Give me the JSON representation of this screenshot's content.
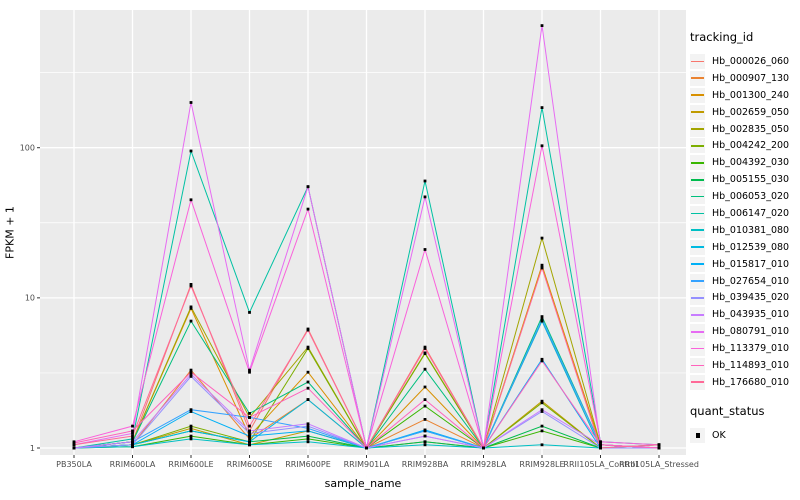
{
  "figure": {
    "background": "#FFFFFF",
    "panel_background": "#EBEBEB",
    "grid_color": "#FFFFFF",
    "axis_text_color": "#4D4D4D",
    "tick_mark_color": "#333333",
    "point_color": "#000000"
  },
  "chart_data": {
    "type": "line",
    "title": "",
    "xlabel": "sample_name",
    "ylabel": "FPKM + 1",
    "y_scale": "log10",
    "y_ticks": [
      1,
      10,
      100
    ],
    "y_minor_ticks": [
      3.1623,
      31.623,
      316.23
    ],
    "ylim": [
      0.9,
      830
    ],
    "grid": "major-and-minor",
    "legend_position": "right",
    "legend_title": "tracking_id",
    "point_marker": "filled-black-square",
    "categories": [
      "PB350LA",
      "RRIM600LA",
      "RRIM600LE",
      "RRIM600SE",
      "RRIM600PE",
      "RRIM901LA",
      "RRIM928BA",
      "RRIM928LA",
      "RRIM928LE",
      "RRII105LA_Control",
      "RRII105LA_Stressed"
    ],
    "series": [
      {
        "name": "Hb_000026_060",
        "color": "#F8766D",
        "values": [
          1.0,
          1.1,
          12.3,
          1.3,
          6.2,
          1.0,
          4.7,
          1.0,
          16.0,
          1.05,
          1.0
        ]
      },
      {
        "name": "Hb_000907_130",
        "color": "#EA8331",
        "values": [
          1.0,
          1.05,
          3.3,
          1.15,
          2.1,
          1.0,
          1.55,
          1.0,
          7.0,
          1.0,
          1.05
        ]
      },
      {
        "name": "Hb_001300_240",
        "color": "#D89000",
        "values": [
          1.0,
          1.1,
          8.5,
          1.2,
          3.2,
          1.0,
          2.55,
          1.0,
          16.5,
          1.05,
          1.0
        ]
      },
      {
        "name": "Hb_002659_050",
        "color": "#C09B00",
        "values": [
          1.0,
          1.05,
          1.35,
          1.05,
          1.3,
          1.0,
          1.1,
          1.0,
          2.05,
          1.0,
          1.0
        ]
      },
      {
        "name": "Hb_002835_050",
        "color": "#A3A500",
        "values": [
          1.0,
          1.1,
          8.7,
          1.6,
          4.7,
          1.0,
          4.3,
          1.0,
          25.0,
          1.05,
          1.0
        ]
      },
      {
        "name": "Hb_004242_200",
        "color": "#7CAE00",
        "values": [
          1.0,
          1.05,
          1.4,
          1.1,
          4.6,
          1.0,
          4.25,
          1.0,
          2.0,
          1.0,
          1.0
        ]
      },
      {
        "name": "Hb_004392_030",
        "color": "#39B600",
        "values": [
          1.0,
          1.02,
          1.2,
          1.05,
          1.15,
          1.0,
          1.9,
          1.0,
          1.3,
          1.0,
          1.0
        ]
      },
      {
        "name": "Hb_005155_030",
        "color": "#00BB4E",
        "values": [
          1.0,
          1.05,
          1.3,
          1.1,
          1.2,
          1.0,
          1.1,
          1.0,
          1.4,
          1.0,
          1.0
        ]
      },
      {
        "name": "Hb_006053_020",
        "color": "#00BF7D",
        "values": [
          1.0,
          1.1,
          7.0,
          1.7,
          2.75,
          1.0,
          3.35,
          1.0,
          7.5,
          1.05,
          1.0
        ]
      },
      {
        "name": "Hb_006147_020",
        "color": "#00C1A3",
        "values": [
          1.0,
          1.15,
          95.0,
          8.0,
          55.0,
          1.0,
          60.0,
          1.0,
          185.0,
          1.1,
          1.05
        ]
      },
      {
        "name": "Hb_010381_080",
        "color": "#00BFC4",
        "values": [
          1.0,
          1.02,
          1.15,
          1.05,
          1.1,
          1.0,
          1.05,
          1.0,
          1.05,
          1.0,
          1.05
        ]
      },
      {
        "name": "Hb_012539_080",
        "color": "#00BAE0",
        "values": [
          1.0,
          1.05,
          1.3,
          1.1,
          2.1,
          1.0,
          1.3,
          1.0,
          7.0,
          1.0,
          1.0
        ]
      },
      {
        "name": "Hb_015817_010",
        "color": "#00B0F6",
        "values": [
          1.0,
          1.05,
          1.75,
          1.2,
          1.3,
          1.0,
          1.32,
          1.0,
          3.9,
          1.0,
          1.0
        ]
      },
      {
        "name": "Hb_027654_010",
        "color": "#35A2FF",
        "values": [
          1.0,
          1.1,
          1.8,
          1.6,
          1.35,
          1.0,
          1.3,
          1.0,
          7.2,
          1.05,
          1.0
        ]
      },
      {
        "name": "Hb_039435_020",
        "color": "#9590FF",
        "values": [
          1.0,
          1.05,
          3.0,
          1.25,
          1.4,
          1.0,
          1.2,
          1.0,
          1.75,
          1.0,
          1.0
        ]
      },
      {
        "name": "Hb_043935_010",
        "color": "#C77CFF",
        "values": [
          1.0,
          1.1,
          3.1,
          1.3,
          1.45,
          1.0,
          1.2,
          1.0,
          1.8,
          1.05,
          1.0
        ]
      },
      {
        "name": "Hb_080791_010",
        "color": "#E76BF3",
        "values": [
          1.05,
          1.25,
          200.0,
          3.3,
          55.0,
          1.0,
          47.0,
          1.0,
          650.0,
          1.05,
          1.0
        ]
      },
      {
        "name": "Hb_113379_010",
        "color": "#FA62DB",
        "values": [
          1.1,
          1.4,
          45.0,
          3.2,
          39.0,
          1.0,
          21.0,
          1.0,
          103.0,
          1.1,
          1.05
        ]
      },
      {
        "name": "Hb_114893_010",
        "color": "#FF62BC",
        "values": [
          1.08,
          1.3,
          3.2,
          1.6,
          2.5,
          1.0,
          2.1,
          1.0,
          3.8,
          1.05,
          1.0
        ]
      },
      {
        "name": "Hb_176680_010",
        "color": "#FF6A98",
        "values": [
          1.05,
          1.2,
          12.0,
          1.4,
          6.1,
          1.0,
          4.6,
          1.0,
          15.8,
          1.0,
          1.05
        ]
      }
    ],
    "quant_legend": {
      "title": "quant_status",
      "items": [
        {
          "label": "OK"
        }
      ]
    }
  }
}
